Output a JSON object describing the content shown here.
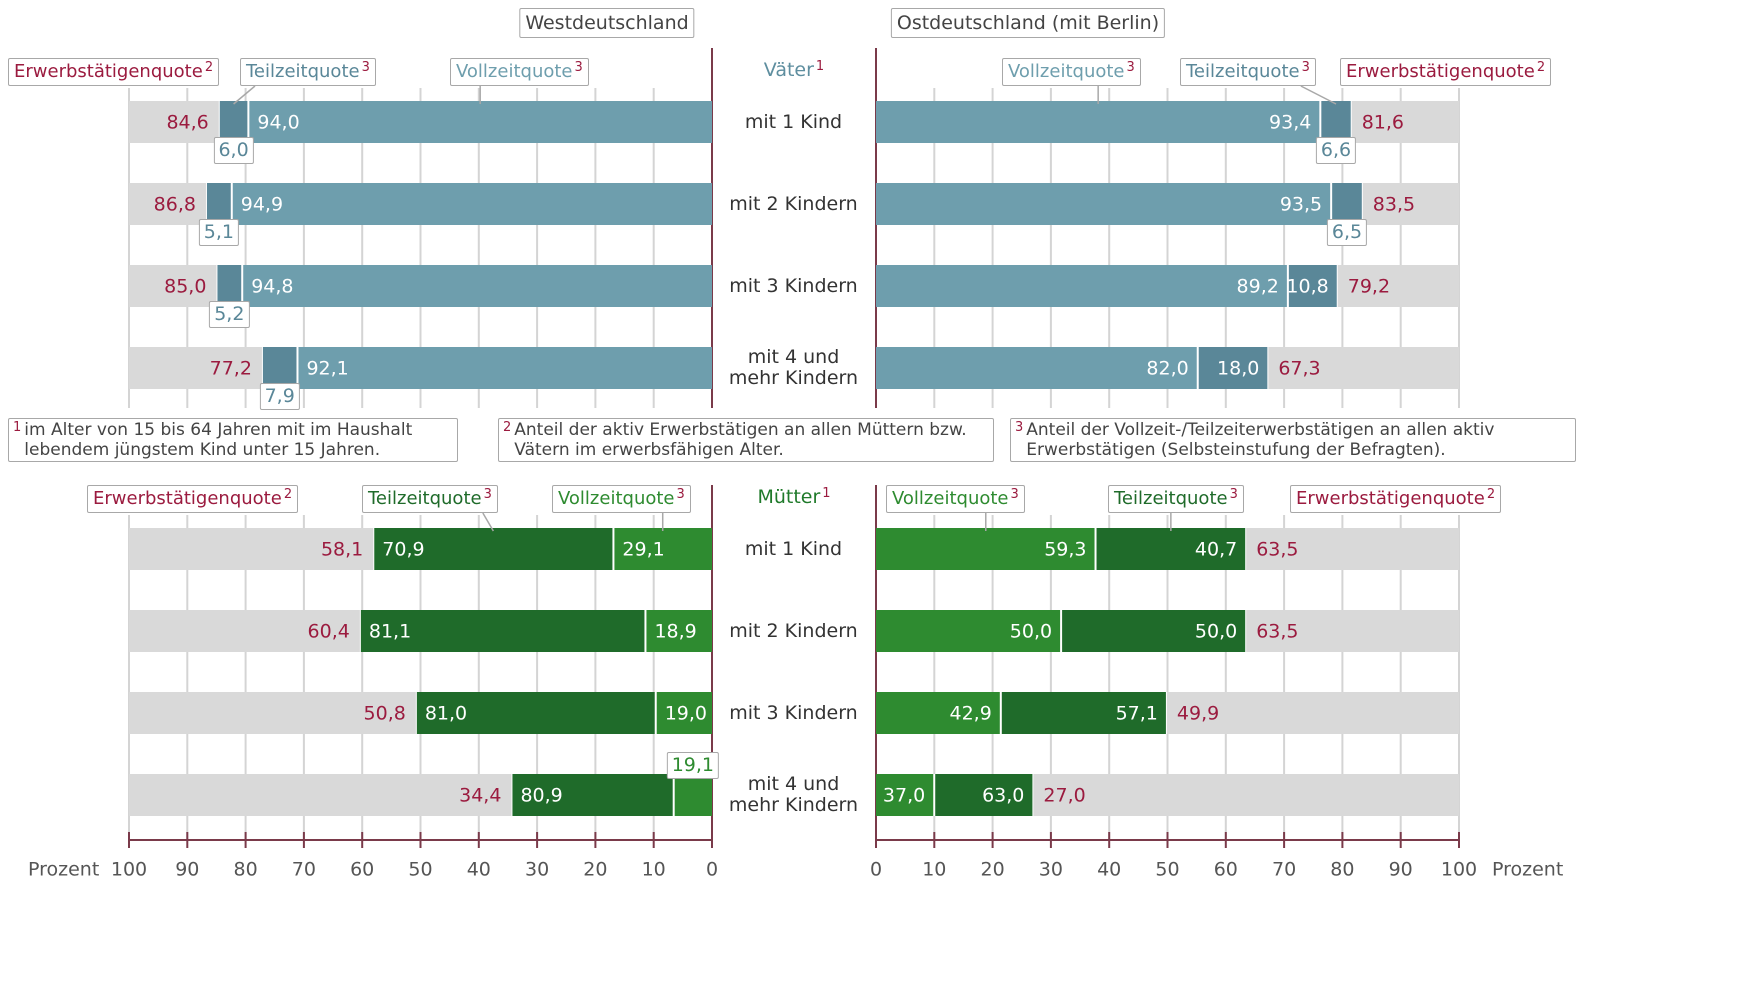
{
  "chart_data": {
    "type": "bar",
    "xlabel": "Prozent",
    "track_color": "#d9d9d9",
    "groups": [
      {
        "name": "Väter",
        "note": "1",
        "color": "#5e8e9f",
        "categories": [
          "mit 1 Kind",
          "mit 2 Kindern",
          "mit 3 Kindern",
          "mit 4 und mehr Kindern"
        ]
      },
      {
        "name": "Mütter",
        "note": "1",
        "color": "#1f7a2a",
        "categories": [
          "mit 1 Kind",
          "mit 2 Kindern",
          "mit 3 Kindern",
          "mit 4 und mehr Kindern"
        ]
      }
    ],
    "panels": [
      {
        "title": "Westdeutschland",
        "xlim": [
          100,
          0
        ],
        "xticks": [
          100,
          90,
          80,
          70,
          60,
          50,
          40,
          30,
          20,
          10,
          0
        ],
        "groups": [
          {
            "series": [
              {
                "name": "Erwerbstätigenquote",
                "note": "2",
                "color": "#9b1b3f",
                "values": [
                  84.6,
                  86.8,
                  85.0,
                  77.2
                ],
                "value_labels": [
                  "84,6",
                  "86,8",
                  "85,0",
                  "77,2"
                ]
              },
              {
                "name": "Vollzeitquote",
                "note": "3",
                "color": "#6e9ead",
                "values": [
                  94.0,
                  94.9,
                  94.8,
                  92.1
                ],
                "value_labels": [
                  "94,0",
                  "94,9",
                  "94,8",
                  "92,1"
                ]
              },
              {
                "name": "Teilzeitquote",
                "note": "3",
                "color": "#5a8798",
                "values": [
                  6.0,
                  5.1,
                  5.2,
                  7.9
                ],
                "value_labels": [
                  "6,0",
                  "5,1",
                  "5,2",
                  "7,9"
                ]
              }
            ]
          },
          {
            "series": [
              {
                "name": "Erwerbstätigenquote",
                "note": "2",
                "color": "#9b1b3f",
                "values": [
                  58.1,
                  60.4,
                  50.8,
                  34.4
                ],
                "value_labels": [
                  "58,1",
                  "60,4",
                  "50,8",
                  "34,4"
                ]
              },
              {
                "name": "Vollzeitquote",
                "note": "3",
                "color": "#2e8b30",
                "values": [
                  29.1,
                  18.9,
                  19.0,
                  19.1
                ],
                "value_labels": [
                  "29,1",
                  "18,9",
                  "19,0",
                  "19,1"
                ]
              },
              {
                "name": "Teilzeitquote",
                "note": "3",
                "color": "#1f6b2a",
                "values": [
                  70.9,
                  81.1,
                  81.0,
                  80.9
                ],
                "value_labels": [
                  "70,9",
                  "81,1",
                  "81,0",
                  "80,9"
                ]
              }
            ]
          }
        ]
      },
      {
        "title": "Ostdeutschland (mit Berlin)",
        "xlim": [
          0,
          100
        ],
        "xticks": [
          0,
          10,
          20,
          30,
          40,
          50,
          60,
          70,
          80,
          90,
          100
        ],
        "groups": [
          {
            "series": [
              {
                "name": "Erwerbstätigenquote",
                "note": "2",
                "color": "#9b1b3f",
                "values": [
                  81.6,
                  83.5,
                  79.2,
                  67.3
                ],
                "value_labels": [
                  "81,6",
                  "83,5",
                  "79,2",
                  "67,3"
                ]
              },
              {
                "name": "Vollzeitquote",
                "note": "3",
                "color": "#6e9ead",
                "values": [
                  93.4,
                  93.5,
                  89.2,
                  82.0
                ],
                "value_labels": [
                  "93,4",
                  "93,5",
                  "89,2",
                  "82,0"
                ]
              },
              {
                "name": "Teilzeitquote",
                "note": "3",
                "color": "#5a8798",
                "values": [
                  6.6,
                  6.5,
                  10.8,
                  18.0
                ],
                "value_labels": [
                  "6,6",
                  "6,5",
                  "10,8",
                  "18,0"
                ]
              }
            ]
          },
          {
            "series": [
              {
                "name": "Erwerbstätigenquote",
                "note": "2",
                "color": "#9b1b3f",
                "values": [
                  63.5,
                  63.5,
                  49.9,
                  27.0
                ],
                "value_labels": [
                  "63,5",
                  "63,5",
                  "49,9",
                  "27,0"
                ]
              },
              {
                "name": "Vollzeitquote",
                "note": "3",
                "color": "#2e8b30",
                "values": [
                  59.3,
                  50.0,
                  42.9,
                  37.0
                ],
                "value_labels": [
                  "59,3",
                  "50,0",
                  "42,9",
                  "37,0"
                ]
              },
              {
                "name": "Teilzeitquote",
                "note": "3",
                "color": "#1f6b2a",
                "values": [
                  40.7,
                  50.0,
                  57.1,
                  63.0
                ],
                "value_labels": [
                  "40,7",
                  "50,0",
                  "57,1",
                  "63,0"
                ]
              }
            ]
          }
        ]
      }
    ],
    "footnotes": [
      {
        "marker": "1",
        "text": "im Alter von 15 bis 64 Jahren mit im Haushalt lebendem jüngstem Kind unter 15 Jahren."
      },
      {
        "marker": "2",
        "text": "Anteil der aktiv Erwerbstätigen an allen Müttern bzw. Vätern im erwerbsfähigen Alter."
      },
      {
        "marker": "3",
        "text": "Anteil der Vollzeit-/Teilzeiterwerbstätigen an allen aktiv Erwerbstätigen (Selbsteinstufung der Befragten)."
      }
    ]
  }
}
